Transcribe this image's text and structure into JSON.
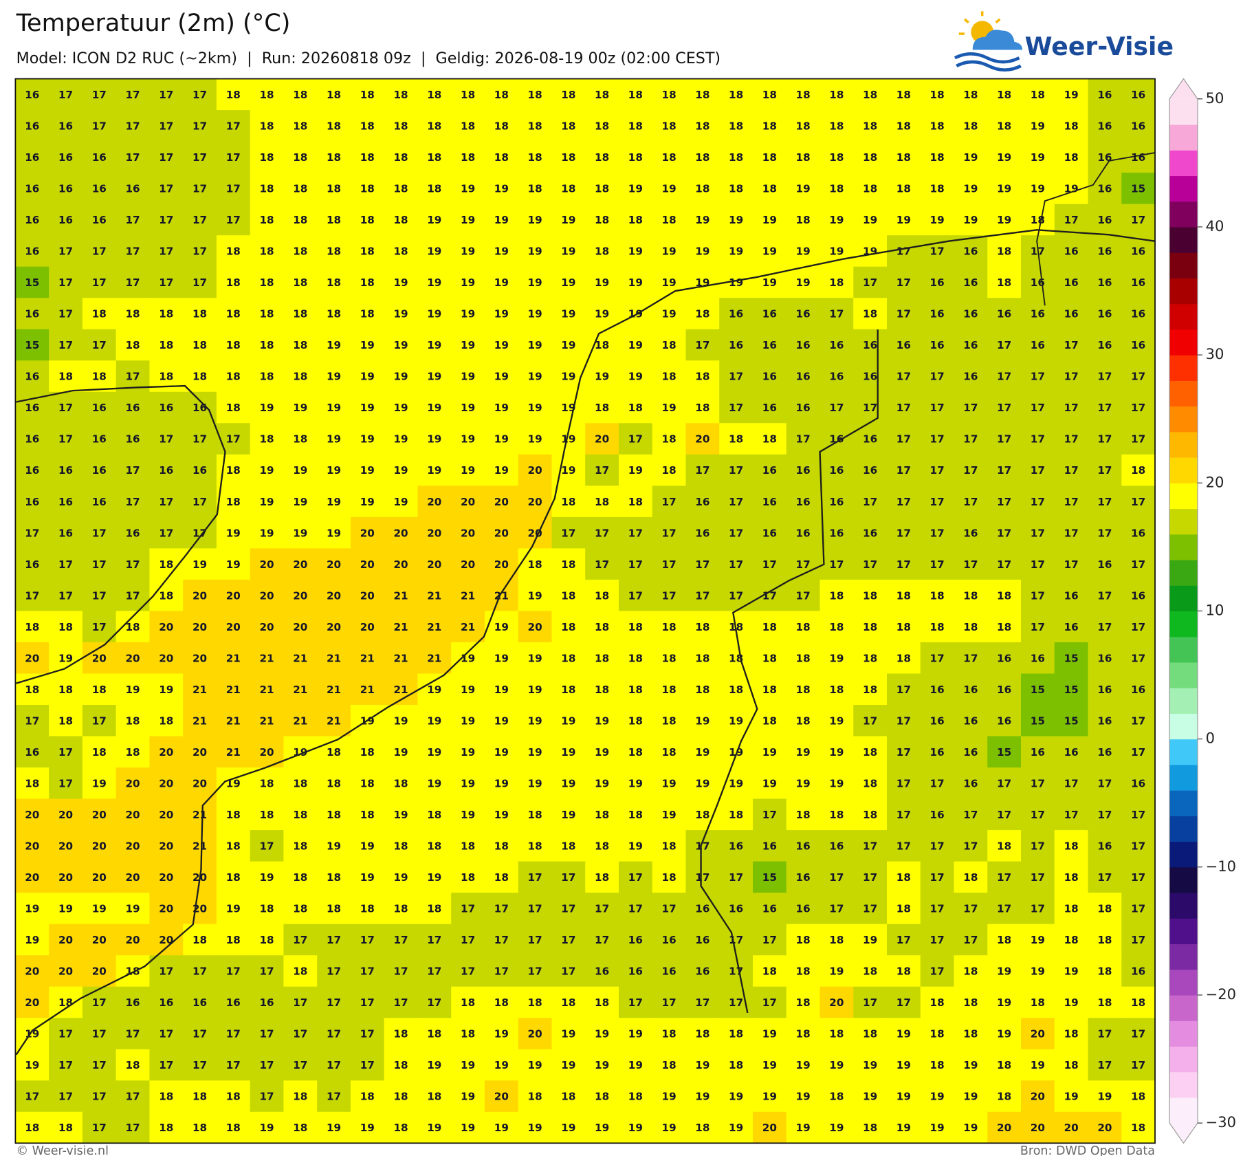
{
  "header": {
    "title": "Temperatuur (2m) (°C)",
    "subtitle": "Model: ICON D2 RUC (~2km)  |  Run: 20260818 09z  |  Geldig: 2026-08-19 00z (02:00 CEST)"
  },
  "logo": {
    "text": "Weer-Visie"
  },
  "grid": {
    "rows": [
      [
        16,
        17,
        17,
        17,
        17,
        17,
        18,
        18,
        18,
        18,
        18,
        18,
        18,
        18,
        18,
        18,
        18,
        18,
        18,
        18,
        18,
        18,
        18,
        18,
        18,
        18,
        18,
        18,
        18,
        18,
        18,
        19,
        16,
        16
      ],
      [
        16,
        16,
        17,
        17,
        17,
        17,
        17,
        18,
        18,
        18,
        18,
        18,
        18,
        18,
        18,
        18,
        18,
        18,
        18,
        18,
        18,
        18,
        18,
        18,
        18,
        18,
        18,
        18,
        18,
        18,
        19,
        18,
        16,
        16
      ],
      [
        16,
        16,
        16,
        17,
        17,
        17,
        17,
        18,
        18,
        18,
        18,
        18,
        18,
        18,
        18,
        18,
        18,
        18,
        18,
        18,
        18,
        18,
        18,
        18,
        18,
        18,
        18,
        18,
        19,
        19,
        19,
        18,
        16,
        16
      ],
      [
        16,
        16,
        16,
        16,
        17,
        17,
        17,
        18,
        18,
        18,
        18,
        18,
        18,
        19,
        19,
        18,
        18,
        18,
        19,
        19,
        18,
        18,
        18,
        19,
        18,
        18,
        18,
        18,
        19,
        19,
        19,
        19,
        16,
        15
      ],
      [
        16,
        16,
        16,
        17,
        17,
        17,
        17,
        18,
        18,
        18,
        18,
        18,
        19,
        19,
        19,
        19,
        19,
        18,
        18,
        18,
        19,
        19,
        19,
        18,
        19,
        19,
        19,
        19,
        19,
        19,
        18,
        17,
        16,
        17
      ],
      [
        16,
        17,
        17,
        17,
        17,
        17,
        18,
        18,
        18,
        18,
        18,
        18,
        19,
        19,
        19,
        19,
        19,
        18,
        19,
        19,
        19,
        19,
        19,
        19,
        19,
        19,
        17,
        17,
        16,
        18,
        17,
        16,
        16,
        16
      ],
      [
        15,
        17,
        17,
        17,
        17,
        17,
        18,
        18,
        18,
        18,
        18,
        19,
        19,
        19,
        19,
        19,
        19,
        19,
        19,
        19,
        19,
        19,
        19,
        19,
        18,
        17,
        17,
        16,
        16,
        18,
        16,
        16,
        16,
        16
      ],
      [
        16,
        17,
        18,
        18,
        18,
        18,
        18,
        18,
        18,
        18,
        18,
        19,
        19,
        19,
        19,
        19,
        19,
        19,
        19,
        19,
        18,
        16,
        16,
        16,
        17,
        18,
        17,
        16,
        16,
        16,
        16,
        16,
        16,
        16
      ],
      [
        15,
        17,
        17,
        18,
        18,
        18,
        18,
        18,
        18,
        19,
        19,
        19,
        19,
        19,
        19,
        19,
        19,
        18,
        19,
        18,
        17,
        16,
        16,
        16,
        16,
        16,
        16,
        16,
        16,
        17,
        16,
        17,
        16,
        16
      ],
      [
        16,
        18,
        18,
        17,
        18,
        18,
        18,
        18,
        18,
        19,
        19,
        19,
        19,
        19,
        19,
        19,
        19,
        19,
        19,
        18,
        18,
        17,
        16,
        16,
        16,
        16,
        17,
        17,
        16,
        17,
        17,
        17,
        17,
        17
      ],
      [
        16,
        17,
        16,
        16,
        16,
        16,
        18,
        19,
        19,
        19,
        19,
        19,
        19,
        19,
        19,
        19,
        19,
        18,
        18,
        19,
        18,
        17,
        16,
        16,
        17,
        17,
        17,
        17,
        17,
        17,
        17,
        17,
        17,
        17
      ],
      [
        16,
        17,
        16,
        16,
        17,
        17,
        17,
        18,
        18,
        19,
        19,
        19,
        19,
        19,
        19,
        19,
        19,
        20,
        17,
        18,
        20,
        18,
        18,
        17,
        16,
        16,
        17,
        17,
        17,
        17,
        17,
        17,
        17,
        17
      ],
      [
        16,
        16,
        16,
        17,
        16,
        16,
        18,
        19,
        19,
        19,
        19,
        19,
        19,
        19,
        19,
        20,
        19,
        17,
        19,
        18,
        17,
        17,
        16,
        16,
        16,
        16,
        17,
        17,
        17,
        17,
        17,
        17,
        17,
        18
      ],
      [
        16,
        16,
        16,
        17,
        17,
        17,
        18,
        19,
        19,
        19,
        19,
        19,
        20,
        20,
        20,
        20,
        18,
        18,
        18,
        17,
        16,
        17,
        16,
        16,
        16,
        17,
        17,
        17,
        17,
        17,
        17,
        17,
        17,
        17
      ],
      [
        17,
        16,
        17,
        16,
        17,
        17,
        19,
        19,
        19,
        19,
        20,
        20,
        20,
        20,
        20,
        20,
        17,
        17,
        17,
        17,
        16,
        17,
        16,
        16,
        16,
        16,
        17,
        17,
        16,
        17,
        17,
        17,
        17,
        16
      ],
      [
        16,
        17,
        17,
        17,
        18,
        19,
        19,
        20,
        20,
        20,
        20,
        20,
        20,
        20,
        20,
        18,
        18,
        17,
        17,
        17,
        17,
        17,
        17,
        17,
        17,
        17,
        17,
        17,
        17,
        17,
        17,
        17,
        16,
        17
      ],
      [
        17,
        17,
        17,
        17,
        18,
        20,
        20,
        20,
        20,
        20,
        20,
        21,
        21,
        21,
        21,
        19,
        18,
        18,
        17,
        17,
        17,
        17,
        17,
        17,
        18,
        18,
        18,
        18,
        18,
        18,
        17,
        16,
        17,
        16
      ],
      [
        18,
        18,
        17,
        18,
        20,
        20,
        20,
        20,
        20,
        20,
        20,
        21,
        21,
        21,
        19,
        20,
        18,
        18,
        18,
        18,
        18,
        18,
        18,
        18,
        18,
        18,
        18,
        18,
        18,
        18,
        17,
        16,
        17,
        17
      ],
      [
        20,
        19,
        20,
        20,
        20,
        20,
        21,
        21,
        21,
        21,
        21,
        21,
        21,
        19,
        19,
        19,
        18,
        18,
        18,
        18,
        18,
        18,
        18,
        18,
        19,
        18,
        18,
        17,
        17,
        16,
        16,
        15,
        16,
        17
      ],
      [
        18,
        18,
        18,
        19,
        19,
        21,
        21,
        21,
        21,
        21,
        21,
        21,
        19,
        19,
        19,
        19,
        18,
        18,
        18,
        18,
        18,
        18,
        18,
        18,
        18,
        18,
        17,
        16,
        16,
        16,
        15,
        15,
        16,
        16
      ],
      [
        17,
        18,
        17,
        18,
        18,
        21,
        21,
        21,
        21,
        21,
        19,
        19,
        19,
        19,
        19,
        19,
        19,
        19,
        18,
        18,
        19,
        19,
        18,
        18,
        19,
        17,
        17,
        16,
        16,
        16,
        15,
        15,
        16,
        17
      ],
      [
        16,
        17,
        18,
        18,
        20,
        20,
        21,
        20,
        19,
        18,
        18,
        19,
        19,
        19,
        19,
        19,
        19,
        19,
        18,
        18,
        19,
        19,
        19,
        19,
        19,
        18,
        17,
        16,
        16,
        15,
        16,
        16,
        16,
        17
      ],
      [
        18,
        17,
        19,
        20,
        20,
        20,
        19,
        18,
        18,
        18,
        18,
        18,
        19,
        19,
        19,
        19,
        19,
        19,
        19,
        19,
        19,
        19,
        19,
        19,
        19,
        18,
        17,
        17,
        16,
        17,
        17,
        17,
        17,
        16
      ],
      [
        20,
        20,
        20,
        20,
        20,
        21,
        18,
        18,
        18,
        18,
        18,
        19,
        18,
        19,
        19,
        18,
        19,
        18,
        18,
        19,
        18,
        18,
        17,
        18,
        18,
        18,
        17,
        16,
        17,
        17,
        17,
        17,
        17,
        17
      ],
      [
        20,
        20,
        20,
        20,
        20,
        21,
        18,
        17,
        18,
        19,
        19,
        18,
        18,
        18,
        18,
        18,
        18,
        18,
        19,
        18,
        17,
        16,
        16,
        16,
        16,
        17,
        17,
        17,
        17,
        18,
        17,
        18,
        16,
        17
      ],
      [
        20,
        20,
        20,
        20,
        20,
        20,
        18,
        19,
        18,
        18,
        19,
        19,
        19,
        18,
        18,
        17,
        17,
        18,
        17,
        18,
        17,
        17,
        15,
        16,
        17,
        17,
        18,
        17,
        18,
        17,
        17,
        18,
        17,
        17
      ],
      [
        19,
        19,
        19,
        19,
        20,
        20,
        19,
        18,
        18,
        18,
        18,
        18,
        18,
        17,
        17,
        17,
        17,
        17,
        17,
        17,
        16,
        16,
        16,
        16,
        17,
        17,
        18,
        17,
        17,
        17,
        17,
        18,
        18,
        17
      ],
      [
        19,
        20,
        20,
        20,
        20,
        18,
        18,
        18,
        17,
        17,
        17,
        17,
        17,
        17,
        17,
        17,
        17,
        17,
        16,
        16,
        16,
        17,
        17,
        18,
        18,
        19,
        17,
        17,
        17,
        18,
        19,
        18,
        18,
        17
      ],
      [
        20,
        20,
        20,
        18,
        17,
        17,
        17,
        17,
        18,
        17,
        17,
        17,
        17,
        17,
        17,
        17,
        17,
        16,
        16,
        16,
        16,
        17,
        18,
        18,
        19,
        18,
        18,
        17,
        18,
        19,
        19,
        19,
        18,
        16
      ],
      [
        20,
        18,
        17,
        16,
        16,
        16,
        16,
        16,
        17,
        17,
        17,
        17,
        17,
        18,
        18,
        18,
        18,
        18,
        17,
        17,
        17,
        17,
        17,
        18,
        20,
        17,
        17,
        18,
        18,
        19,
        18,
        19,
        18,
        18
      ],
      [
        19,
        17,
        17,
        17,
        17,
        17,
        17,
        17,
        17,
        17,
        17,
        18,
        18,
        18,
        19,
        20,
        19,
        19,
        19,
        18,
        18,
        18,
        19,
        18,
        18,
        18,
        19,
        18,
        18,
        19,
        20,
        18,
        17,
        17
      ],
      [
        19,
        17,
        17,
        18,
        17,
        17,
        17,
        17,
        17,
        17,
        17,
        18,
        19,
        19,
        19,
        19,
        19,
        19,
        19,
        18,
        19,
        18,
        19,
        19,
        19,
        19,
        19,
        18,
        19,
        18,
        19,
        18,
        17,
        17
      ],
      [
        17,
        17,
        17,
        17,
        18,
        18,
        18,
        17,
        18,
        17,
        18,
        18,
        18,
        19,
        20,
        18,
        18,
        18,
        18,
        19,
        19,
        19,
        19,
        19,
        18,
        19,
        19,
        19,
        19,
        18,
        20,
        19,
        19,
        18
      ],
      [
        18,
        18,
        17,
        17,
        18,
        18,
        18,
        19,
        18,
        19,
        19,
        18,
        19,
        19,
        19,
        19,
        19,
        19,
        19,
        19,
        18,
        19,
        20,
        19,
        19,
        18,
        19,
        19,
        19,
        20,
        20,
        20,
        20,
        18
      ]
    ]
  },
  "colorbar": {
    "lim": [
      -30,
      50
    ],
    "ticks": [
      {
        "value": -30,
        "label": "−30"
      },
      {
        "value": -20,
        "label": "−20"
      },
      {
        "value": -10,
        "label": "−10"
      },
      0,
      10,
      20,
      30,
      40,
      50
    ],
    "colors": [
      "#fdeefb",
      "#fcd0f2",
      "#f4b0ea",
      "#e48ce0",
      "#c866cc",
      "#a848bc",
      "#7c2aa4",
      "#50108c",
      "#2c0a6a",
      "#160a44",
      "#0a1a78",
      "#0840a0",
      "#0a66bc",
      "#129ade",
      "#40c8f8",
      "#c8fee4",
      "#a4f0b4",
      "#74dc7c",
      "#44c454",
      "#10b820",
      "#089a18",
      "#3aa812",
      "#7cc000",
      "#c6d800",
      "#ffff00",
      "#ffd800",
      "#ffb800",
      "#ff8c00",
      "#ff6000",
      "#ff3000",
      "#f00000",
      "#d00000",
      "#a80000",
      "#7a0010",
      "#4a0030",
      "#80005e",
      "#b80098",
      "#f048cc",
      "#f8a8d8",
      "#fde0f0"
    ]
  },
  "footer": {
    "left": "© Weer-visie.nl",
    "right": "Bron: DWD Open Data"
  }
}
